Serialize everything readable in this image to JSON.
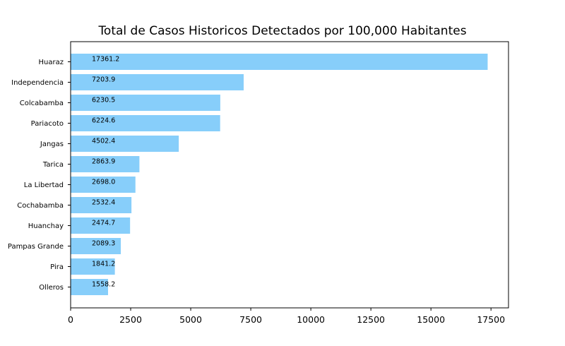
{
  "chart_data": {
    "type": "bar",
    "orientation": "horizontal",
    "title": "Total de Casos Historicos Detectados por 100,000 Habitantes",
    "xlabel": "",
    "ylabel": "",
    "categories": [
      "Huaraz",
      "Independencia",
      "Colcabamba",
      "Pariacoto",
      "Jangas",
      "Tarica",
      "La Libertad",
      "Cochabamba",
      "Huanchay",
      "Pampas Grande",
      "Pira",
      "Olleros"
    ],
    "values": [
      17361.2,
      7203.9,
      6230.5,
      6224.6,
      4502.4,
      2863.9,
      2698.0,
      2532.4,
      2474.7,
      2089.3,
      1841.2,
      1558.2
    ],
    "value_labels": [
      "17361.2",
      "7203.9",
      "6230.5",
      "6224.6",
      "4502.4",
      "2863.9",
      "2698.0",
      "2532.4",
      "2474.7",
      "2089.3",
      "1841.2",
      "1558.2"
    ],
    "xlim": [
      0,
      18229.26
    ],
    "xticks": [
      0,
      2500,
      5000,
      7500,
      10000,
      12500,
      15000,
      17500
    ],
    "xtick_labels": [
      "0",
      "2500",
      "5000",
      "7500",
      "10000",
      "12500",
      "15000",
      "17500"
    ],
    "bar_color": "#87cefa",
    "grid": false,
    "legend": "none"
  }
}
